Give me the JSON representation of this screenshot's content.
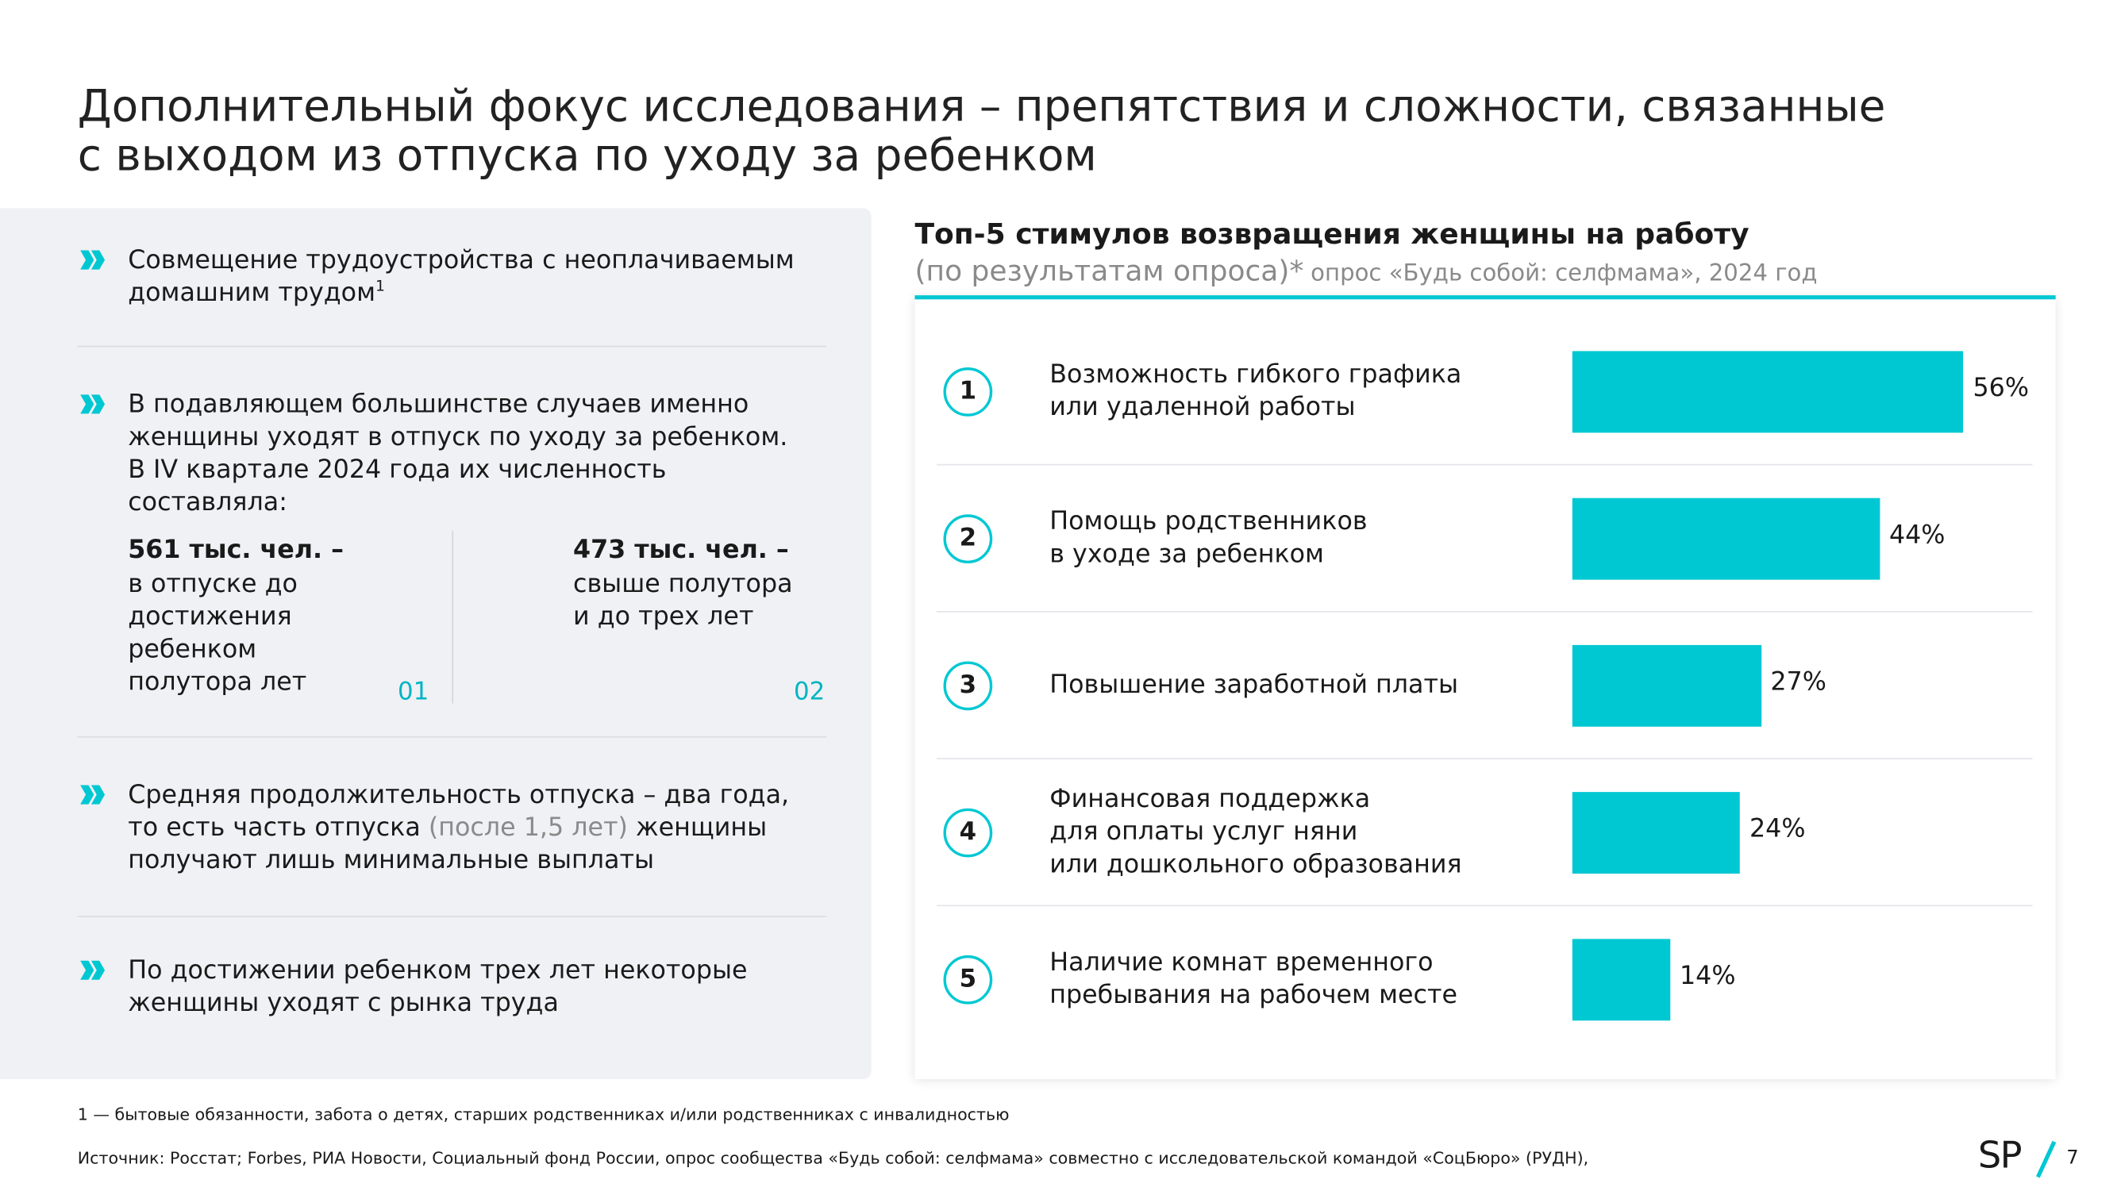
{
  "header": {
    "title": "Дополнительный фокус исследования – препятствия и сложности, связанные\nс выходом из отпуска по уходу за ребенком"
  },
  "bullets": [
    {
      "text": "Совмещение трудоустройства с неоплачиваемым\nдомашним трудом",
      "footnote_mark": "1"
    },
    {
      "text": "В подавляющем большинстве случаев именно\nженщины уходят в отпуск по уходу за ребенком.\nВ IV квартале 2024 года их численность\nсоставляла:",
      "stats": [
        {
          "value": "561 тыс. чел. –",
          "text": "в отпуске до\nдостижения\nребенком\nполутора лет",
          "number": "01"
        },
        {
          "value": "473 тыс. чел. –",
          "text": "свыше полутора\nи до трех лет",
          "number": "02"
        }
      ]
    },
    {
      "parts": [
        "Средняя продолжительность отпуска – два года,\nто есть часть отпуска ",
        "(после 1,5 лет)",
        " женщины\nполучают лишь минимальные выплаты"
      ]
    },
    {
      "text": "По достижении ребенком трех лет некоторые\nженщины уходят с рынка труда"
    }
  ],
  "chart_data": {
    "type": "bar",
    "orientation": "horizontal",
    "title": "Топ-5 стимулов возвращения женщины на работу",
    "subtitle": "(по результатам опроса)*",
    "source": "опрос «Будь собой: селфмама», 2024 год",
    "rank_labels": [
      "1",
      "2",
      "3",
      "4",
      "5"
    ],
    "categories": [
      "Возможность гибкого графика\nили удаленной работы",
      "Помощь родственников\nв уходе за ребенком",
      "Повышение заработной платы",
      "Финансовая поддержка\nдля оплаты услуг няни\nили дошкольного образования",
      "Наличие комнат временного\nпребывания на рабочем месте"
    ],
    "values": [
      56,
      44,
      27,
      24,
      14
    ],
    "value_labels": [
      "56%",
      "44%",
      "27%",
      "24%",
      "14%"
    ],
    "color": "#00c8d2"
  },
  "footer": {
    "footnote": "1 — бытовые обязанности, забота о детях, старших родственниках и/или родственниках с инвалидностью",
    "source": "Источник: Росстат; Forbes, РИА Новости, Социальный фонд России, опрос сообщества «Будь собой: селфмама» совместно с исследовательской командой «СоцБюро» (РУДН),",
    "logo": "SP",
    "page": "7"
  }
}
